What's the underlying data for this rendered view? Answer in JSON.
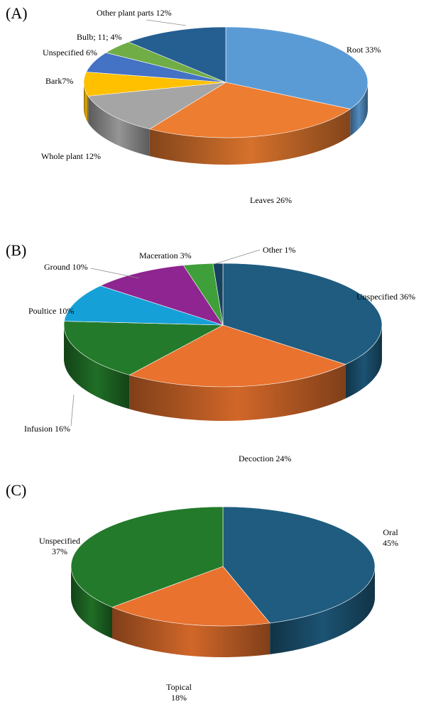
{
  "chart_data": [
    {
      "type": "pie",
      "panel_label": "(A)",
      "slices": [
        {
          "label": "Root 33%",
          "value": 33,
          "color": "#5b9bd5"
        },
        {
          "label": "Leaves 26%",
          "value": 26,
          "color": "#ed7d31"
        },
        {
          "label": "Whole plant 12%",
          "value": 12,
          "color": "#a5a5a5"
        },
        {
          "label": "Bark7%",
          "value": 7,
          "color": "#ffc000"
        },
        {
          "label": "Unspecified 6%",
          "value": 6,
          "color": "#4472c4"
        },
        {
          "label": "Bulb; 11; 4%",
          "value": 4,
          "color": "#70ad47"
        },
        {
          "label": "Other plant parts 12%",
          "value": 12,
          "color": "#255e91"
        }
      ]
    },
    {
      "type": "pie",
      "panel_label": "(B)",
      "slices": [
        {
          "label": "Unspecified  36%",
          "value": 36,
          "color": "#1f5c80"
        },
        {
          "label": "Decoction 24%",
          "value": 24,
          "color": "#e8722e"
        },
        {
          "label": "Infusion 16%",
          "value": 16,
          "color": "#237a2a"
        },
        {
          "label": "Poultice 10%",
          "value": 10,
          "color": "#16a0d8"
        },
        {
          "label": "Ground 10%",
          "value": 10,
          "color": "#8e2590"
        },
        {
          "label": "Maceration 3%",
          "value": 3,
          "color": "#3f9f3a"
        },
        {
          "label": "Other 1%",
          "value": 1,
          "color": "#15425e"
        }
      ]
    },
    {
      "type": "pie",
      "panel_label": "(C)",
      "slices": [
        {
          "label": "Oral\n45%",
          "value": 45,
          "color": "#1f5c80"
        },
        {
          "label": "Topical\n18%",
          "value": 18,
          "color": "#e8722e"
        },
        {
          "label": "Unspecified\n37%",
          "value": 37,
          "color": "#237a2a"
        }
      ]
    }
  ]
}
